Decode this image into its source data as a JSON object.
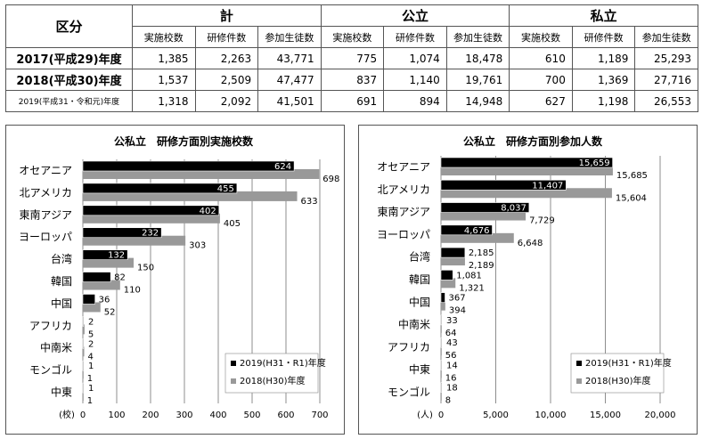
{
  "table": {
    "corner": "区分",
    "groups": [
      "計",
      "公立",
      "私立"
    ],
    "subcols": [
      "実施校数",
      "研修件数",
      "参加生徒数"
    ],
    "rows": [
      {
        "label": "2017(平成29)年度",
        "values": [
          "1,385",
          "2,263",
          "43,771",
          "775",
          "1,074",
          "18,478",
          "610",
          "1,189",
          "25,293"
        ]
      },
      {
        "label": "2018(平成30)年度",
        "values": [
          "1,537",
          "2,509",
          "47,477",
          "837",
          "1,140",
          "19,761",
          "700",
          "1,369",
          "27,716"
        ]
      },
      {
        "label": "2019(平成31・令和元)年度",
        "values": [
          "1,318",
          "2,092",
          "41,501",
          "691",
          "894",
          "14,948",
          "627",
          "1,198",
          "26,553"
        ]
      }
    ]
  },
  "chart_data": [
    {
      "type": "bar",
      "title": "公私立　研修方面別実施校数",
      "unit_label": "(校)",
      "categories": [
        "オセアニア",
        "北アメリカ",
        "東南アジア",
        "ヨーロッパ",
        "台湾",
        "韓国",
        "中国",
        "アフリカ",
        "中南米",
        "モンゴル",
        "中東"
      ],
      "series": [
        {
          "name": "2019(H31・R1)年度",
          "color": "#000000",
          "values": [
            624,
            455,
            402,
            232,
            132,
            82,
            36,
            2,
            2,
            1,
            1
          ]
        },
        {
          "name": "2018(H30)年度",
          "color": "#999999",
          "values": [
            698,
            633,
            405,
            303,
            150,
            110,
            52,
            5,
            4,
            1,
            1
          ]
        }
      ],
      "xlim": [
        0,
        700
      ],
      "xticks": [
        "0",
        "100",
        "200",
        "300",
        "400",
        "500",
        "600",
        "700"
      ]
    },
    {
      "type": "bar",
      "title": "公私立　研修方面別参加人数",
      "unit_label": "(人)",
      "categories": [
        "オセアニア",
        "北アメリカ",
        "東南アジア",
        "ヨーロッパ",
        "台湾",
        "韓国",
        "中国",
        "中南米",
        "アフリカ",
        "中東",
        "モンゴル"
      ],
      "series": [
        {
          "name": "2019(H31・R1)年度",
          "color": "#000000",
          "values": [
            15659,
            11407,
            8037,
            4676,
            2185,
            1081,
            367,
            33,
            43,
            14,
            18
          ]
        },
        {
          "name": "2018(H30)年度",
          "color": "#999999",
          "values": [
            15685,
            15604,
            7729,
            6648,
            2189,
            1321,
            394,
            64,
            56,
            16,
            8
          ]
        }
      ],
      "xlim": [
        0,
        20000
      ],
      "xticks": [
        "0",
        "5,000",
        "10,000",
        "15,000",
        "20,000"
      ]
    }
  ]
}
